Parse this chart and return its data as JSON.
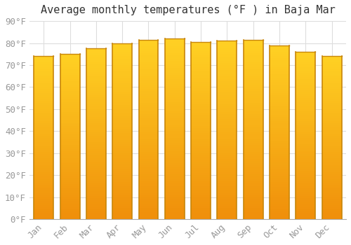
{
  "title": "Average monthly temperatures (°F ) in Baja Mar",
  "months": [
    "Jan",
    "Feb",
    "Mar",
    "Apr",
    "May",
    "Jun",
    "Jul",
    "Aug",
    "Sep",
    "Oct",
    "Nov",
    "Dec"
  ],
  "values": [
    74,
    75,
    77.5,
    80,
    81.5,
    82,
    80.5,
    81,
    81.5,
    79,
    76,
    74
  ],
  "bar_color_left": "#F5A623",
  "bar_color_right": "#FFD966",
  "bar_edge_color": "#C8860A",
  "background_color": "#FFFFFF",
  "plot_bg_color": "#FFFFFF",
  "grid_color": "#DDDDDD",
  "ylim": [
    0,
    90
  ],
  "yticks": [
    0,
    10,
    20,
    30,
    40,
    50,
    60,
    70,
    80,
    90
  ],
  "ytick_labels": [
    "0°F",
    "10°F",
    "20°F",
    "30°F",
    "40°F",
    "50°F",
    "60°F",
    "70°F",
    "80°F",
    "90°F"
  ],
  "title_fontsize": 11,
  "tick_fontsize": 9,
  "font_family": "monospace",
  "tick_color": "#999999",
  "bar_width": 0.75
}
